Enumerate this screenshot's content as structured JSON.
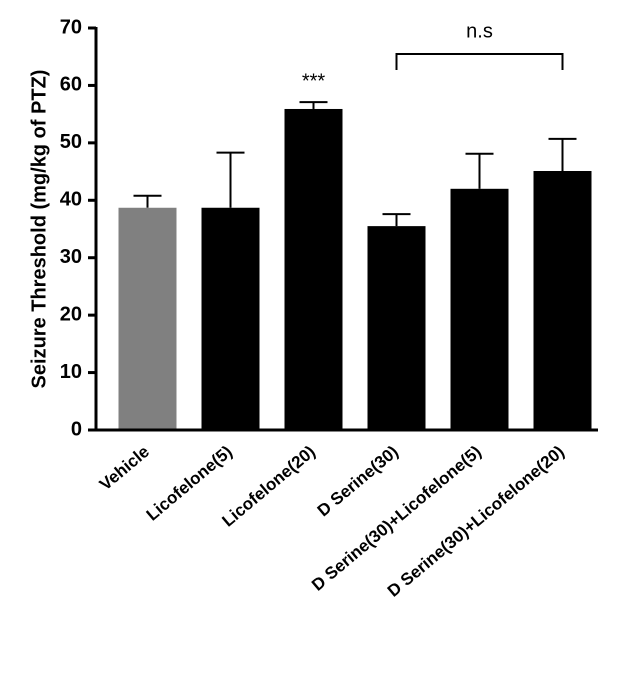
{
  "chart_data": {
    "type": "bar",
    "ylabel": "Seizure Threshold (mg/kg of PTZ)",
    "categories": [
      "Vehicle",
      "Licofelone(5)",
      "Licofelone(20)",
      "D Serine(30)",
      "D Serine(30)+Licofelone(5)",
      "D Serine(30)+Licofelone(20)"
    ],
    "values": [
      38.7,
      38.7,
      55.9,
      35.5,
      42.0,
      45.1
    ],
    "errors": [
      2.1,
      9.6,
      1.2,
      2.1,
      6.1,
      5.6
    ],
    "colors": [
      "#808080",
      "#000000",
      "#000000",
      "#000000",
      "#000000",
      "#000000"
    ],
    "ylim": [
      0,
      70
    ],
    "yticks": [
      0,
      10,
      20,
      30,
      40,
      50,
      60,
      70
    ],
    "annotations": [
      "***",
      "n.s"
    ]
  }
}
